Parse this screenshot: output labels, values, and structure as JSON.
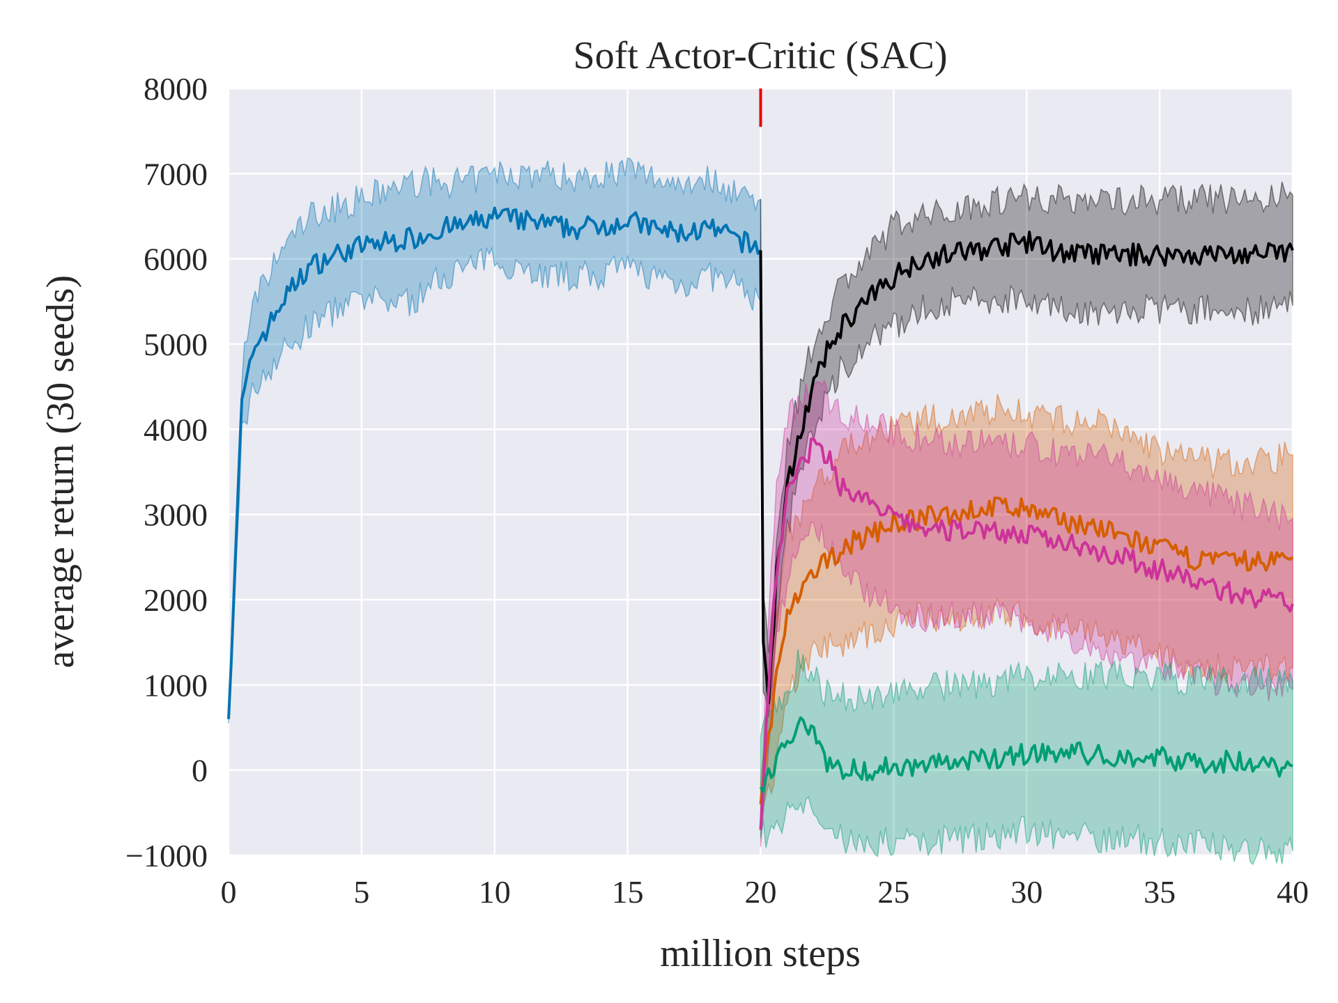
{
  "chart_data": {
    "type": "line",
    "title": "Soft Actor-Critic (SAC)",
    "xlabel": "million steps",
    "ylabel": "average return (30 seeds)",
    "xlim": [
      0,
      40
    ],
    "ylim": [
      -1000,
      8000
    ],
    "xticks": [
      0,
      5,
      10,
      15,
      20,
      25,
      30,
      35,
      40
    ],
    "yticks": [
      -1000,
      0,
      1000,
      2000,
      3000,
      4000,
      5000,
      6000,
      7000,
      8000
    ],
    "xtick_labels": [
      "0",
      "5",
      "10",
      "15",
      "20",
      "25",
      "30",
      "35",
      "40"
    ],
    "ytick_labels": [
      "−1000",
      "0",
      "1000",
      "2000",
      "3000",
      "4000",
      "5000",
      "6000",
      "7000",
      "8000"
    ],
    "grid": true,
    "background": "#eaeaf2",
    "vline": {
      "x": 20,
      "y_range": [
        7550,
        8000
      ],
      "color": "#e8000b"
    },
    "series": [
      {
        "color": "#0173b2",
        "points": [
          [
            0,
            600,
            550,
            650
          ],
          [
            0.3,
            2800,
            2500,
            3100
          ],
          [
            0.5,
            4300,
            4000,
            4700
          ],
          [
            0.8,
            4700,
            4300,
            5200
          ],
          [
            1,
            5000,
            4500,
            5500
          ],
          [
            1.5,
            5200,
            4700,
            5800
          ],
          [
            2,
            5500,
            4900,
            6100
          ],
          [
            2.5,
            5700,
            5000,
            6300
          ],
          [
            3,
            5900,
            5200,
            6500
          ],
          [
            4,
            6050,
            5400,
            6600
          ],
          [
            5,
            6150,
            5500,
            6700
          ],
          [
            6,
            6200,
            5500,
            6800
          ],
          [
            7,
            6250,
            5500,
            6900
          ],
          [
            8,
            6350,
            5800,
            6900
          ],
          [
            9,
            6400,
            5900,
            6900
          ],
          [
            10,
            6500,
            6000,
            7000
          ],
          [
            11,
            6450,
            5900,
            7000
          ],
          [
            12,
            6400,
            5800,
            7000
          ],
          [
            13,
            6350,
            5800,
            6950
          ],
          [
            14,
            6400,
            5800,
            7000
          ],
          [
            15,
            6450,
            5900,
            7050
          ],
          [
            16,
            6350,
            5800,
            6950
          ],
          [
            17,
            6300,
            5700,
            6900
          ],
          [
            18,
            6350,
            5800,
            6950
          ],
          [
            19,
            6250,
            5700,
            6800
          ],
          [
            20,
            6100,
            5500,
            6700
          ]
        ]
      },
      {
        "color": "#000000",
        "points": [
          [
            20,
            6100,
            5500,
            6700
          ],
          [
            20.1,
            1500,
            900,
            2100
          ],
          [
            20.3,
            800,
            500,
            1200
          ],
          [
            20.6,
            2300,
            1800,
            2800
          ],
          [
            21,
            3300,
            2800,
            3800
          ],
          [
            21.5,
            4000,
            3500,
            4500
          ],
          [
            22,
            4500,
            4000,
            5000
          ],
          [
            22.5,
            4900,
            4400,
            5400
          ],
          [
            23,
            5200,
            4700,
            5700
          ],
          [
            24,
            5500,
            5000,
            6000
          ],
          [
            25,
            5800,
            5200,
            6400
          ],
          [
            26,
            6000,
            5400,
            6500
          ],
          [
            27,
            6050,
            5500,
            6550
          ],
          [
            28,
            6100,
            5500,
            6650
          ],
          [
            29,
            6150,
            5500,
            6700
          ],
          [
            30,
            6200,
            5600,
            6750
          ],
          [
            31,
            6100,
            5400,
            6700
          ],
          [
            32,
            6050,
            5400,
            6700
          ],
          [
            33,
            6050,
            5350,
            6700
          ],
          [
            34,
            6050,
            5400,
            6700
          ],
          [
            35,
            6050,
            5400,
            6700
          ],
          [
            36,
            6050,
            5400,
            6700
          ],
          [
            37,
            6050,
            5400,
            6700
          ],
          [
            38,
            6050,
            5400,
            6700
          ],
          [
            39,
            6050,
            5400,
            6700
          ],
          [
            40,
            6100,
            5450,
            6750
          ]
        ]
      },
      {
        "color": "#d55e00",
        "points": [
          [
            20,
            -400,
            -700,
            -100
          ],
          [
            20.5,
            900,
            0,
            1800
          ],
          [
            21,
            1800,
            900,
            2700
          ],
          [
            22,
            2300,
            1400,
            3300
          ],
          [
            23,
            2600,
            1500,
            3700
          ],
          [
            24,
            2750,
            1600,
            3900
          ],
          [
            25,
            2900,
            1700,
            4000
          ],
          [
            26,
            2950,
            1800,
            4100
          ],
          [
            27,
            3000,
            1800,
            4150
          ],
          [
            28,
            3050,
            1800,
            4200
          ],
          [
            29,
            3100,
            1850,
            4250
          ],
          [
            30,
            3050,
            1800,
            4200
          ],
          [
            31,
            2950,
            1700,
            4100
          ],
          [
            32,
            2900,
            1650,
            4100
          ],
          [
            33,
            2800,
            1550,
            4050
          ],
          [
            34,
            2700,
            1450,
            3900
          ],
          [
            35,
            2600,
            1350,
            3750
          ],
          [
            36,
            2500,
            1250,
            3650
          ],
          [
            37,
            2450,
            1200,
            3600
          ],
          [
            38,
            2450,
            1200,
            3600
          ],
          [
            39,
            2450,
            1200,
            3650
          ],
          [
            40,
            2500,
            1200,
            3700
          ]
        ]
      },
      {
        "color": "#cc3399",
        "points": [
          [
            20,
            -700,
            -900,
            -500
          ],
          [
            20.3,
            1000,
            300,
            1800
          ],
          [
            20.6,
            2400,
            1500,
            3300
          ],
          [
            21,
            3200,
            2200,
            4100
          ],
          [
            21.5,
            3600,
            2600,
            4400
          ],
          [
            22,
            3800,
            2800,
            4500
          ],
          [
            22.5,
            3700,
            2700,
            4400
          ],
          [
            23,
            3350,
            2300,
            4200
          ],
          [
            24,
            3150,
            2100,
            4100
          ],
          [
            25,
            2950,
            1900,
            3950
          ],
          [
            26,
            2850,
            1800,
            3900
          ],
          [
            27,
            2800,
            1800,
            3850
          ],
          [
            28,
            2850,
            1850,
            3850
          ],
          [
            29,
            2800,
            1800,
            3800
          ],
          [
            30,
            2750,
            1750,
            3800
          ],
          [
            31,
            2700,
            1650,
            3750
          ],
          [
            32,
            2650,
            1500,
            3700
          ],
          [
            33,
            2550,
            1400,
            3650
          ],
          [
            34,
            2450,
            1300,
            3550
          ],
          [
            35,
            2350,
            1250,
            3450
          ],
          [
            36,
            2250,
            1150,
            3300
          ],
          [
            37,
            2150,
            1050,
            3200
          ],
          [
            38,
            2050,
            950,
            3100
          ],
          [
            39,
            2000,
            950,
            3050
          ],
          [
            40,
            1950,
            950,
            2950
          ]
        ]
      },
      {
        "color": "#029e73",
        "points": [
          [
            20,
            -200,
            -800,
            400
          ],
          [
            21,
            300,
            -500,
            1000
          ],
          [
            21.5,
            600,
            -400,
            1300
          ],
          [
            22,
            500,
            -500,
            1100
          ],
          [
            22.5,
            100,
            -700,
            900
          ],
          [
            23,
            0,
            -800,
            850
          ],
          [
            24,
            0,
            -850,
            850
          ],
          [
            25,
            50,
            -850,
            950
          ],
          [
            26,
            50,
            -850,
            950
          ],
          [
            27,
            100,
            -800,
            1000
          ],
          [
            28,
            100,
            -800,
            1000
          ],
          [
            29,
            150,
            -750,
            1050
          ],
          [
            30,
            200,
            -700,
            1100
          ],
          [
            31,
            200,
            -750,
            1100
          ],
          [
            32,
            200,
            -750,
            1100
          ],
          [
            33,
            150,
            -800,
            1100
          ],
          [
            34,
            150,
            -800,
            1100
          ],
          [
            35,
            150,
            -850,
            1100
          ],
          [
            36,
            100,
            -850,
            1050
          ],
          [
            37,
            100,
            -900,
            1050
          ],
          [
            38,
            100,
            -900,
            1050
          ],
          [
            39,
            50,
            -950,
            1050
          ],
          [
            40,
            50,
            -950,
            1050
          ]
        ]
      }
    ]
  }
}
